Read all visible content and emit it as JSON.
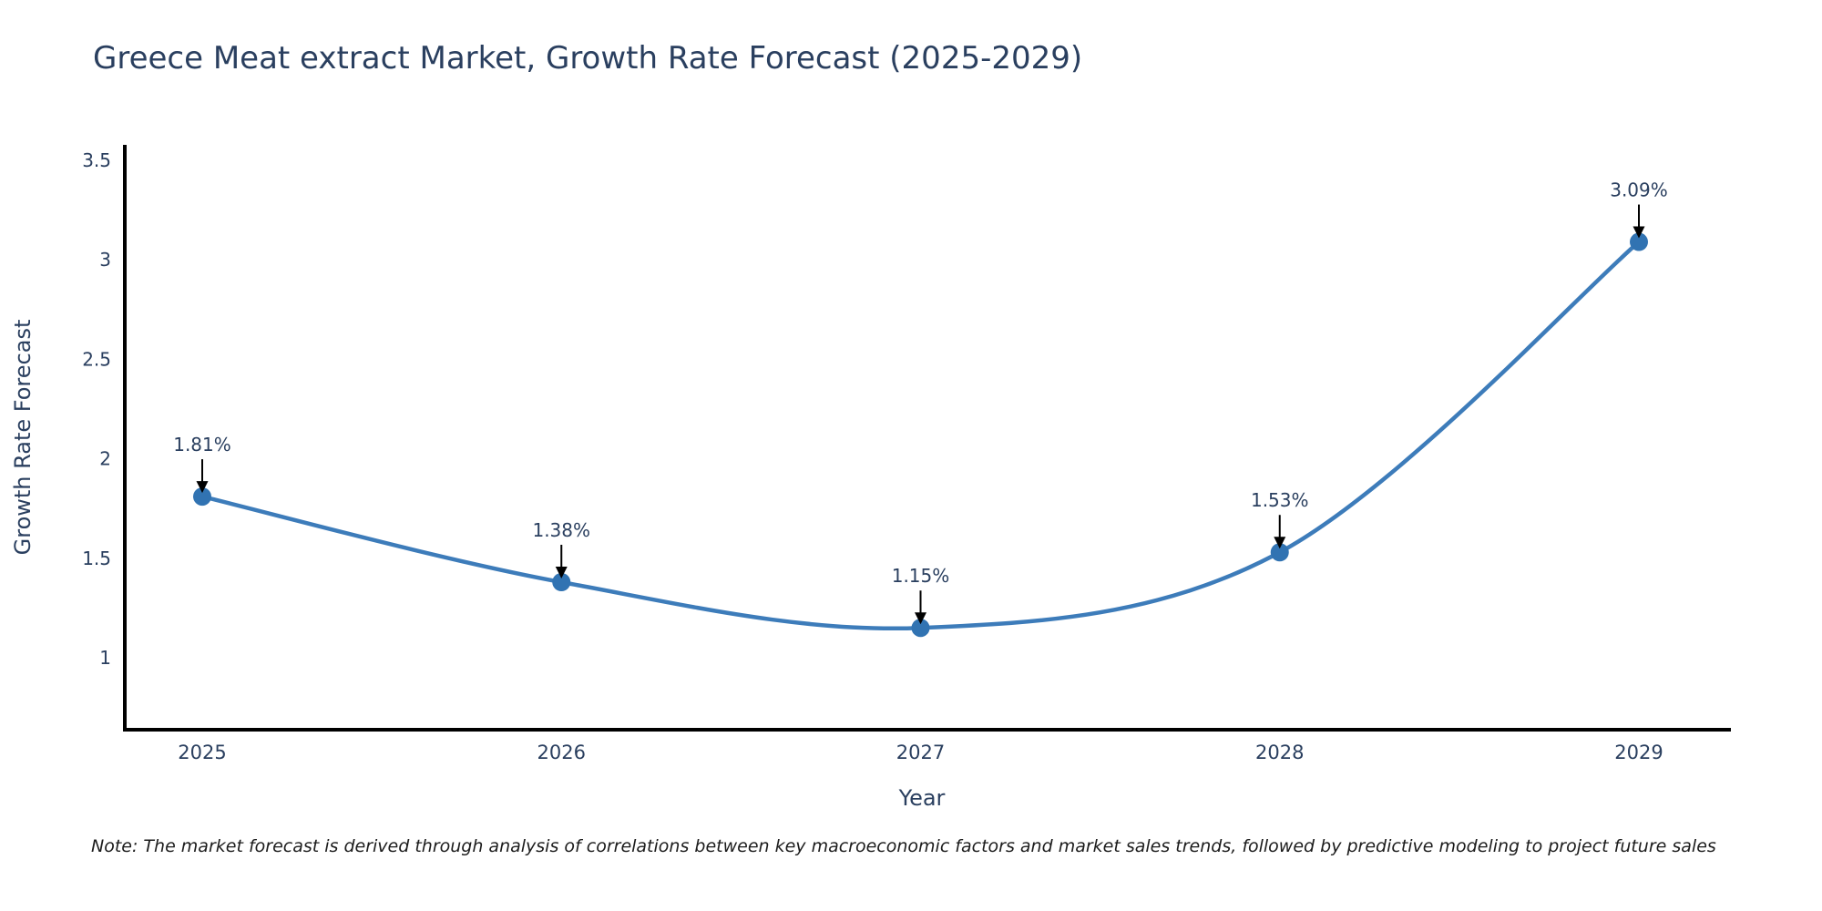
{
  "title": "Greece Meat extract Market, Growth Rate Forecast (2025-2029)",
  "note": "Note: The market forecast is derived through analysis of correlations between key macroeconomic factors and market sales trends, followed by predictive modeling to project future sales",
  "chart_data": {
    "type": "line",
    "title": "Greece Meat extract Market, Growth Rate Forecast (2025-2029)",
    "xlabel": "Year",
    "ylabel": "Growth Rate Forecast",
    "categories": [
      "2025",
      "2026",
      "2027",
      "2028",
      "2029"
    ],
    "values": [
      1.81,
      1.38,
      1.15,
      1.53,
      3.09
    ],
    "point_labels": [
      "1.81%",
      "1.38%",
      "1.15%",
      "1.53%",
      "3.09%"
    ],
    "ytick_values": [
      1,
      1.5,
      2,
      2.5,
      3,
      3.5
    ],
    "ytick_labels": [
      "1",
      "1.5",
      "2",
      "2.5",
      "3",
      "3.5"
    ],
    "ylim": [
      0.64,
      3.58
    ],
    "line_shape": "spline",
    "grid": false,
    "legend": "none",
    "annotations_arrow": true,
    "colors": {
      "line": "#3d7cba",
      "marker": "#3173b2",
      "axis": "#000000",
      "tick_text": "#2a3f5f",
      "annotation_text": "#2a3f5f",
      "arrow": "#000000",
      "background": "#ffffff"
    }
  }
}
